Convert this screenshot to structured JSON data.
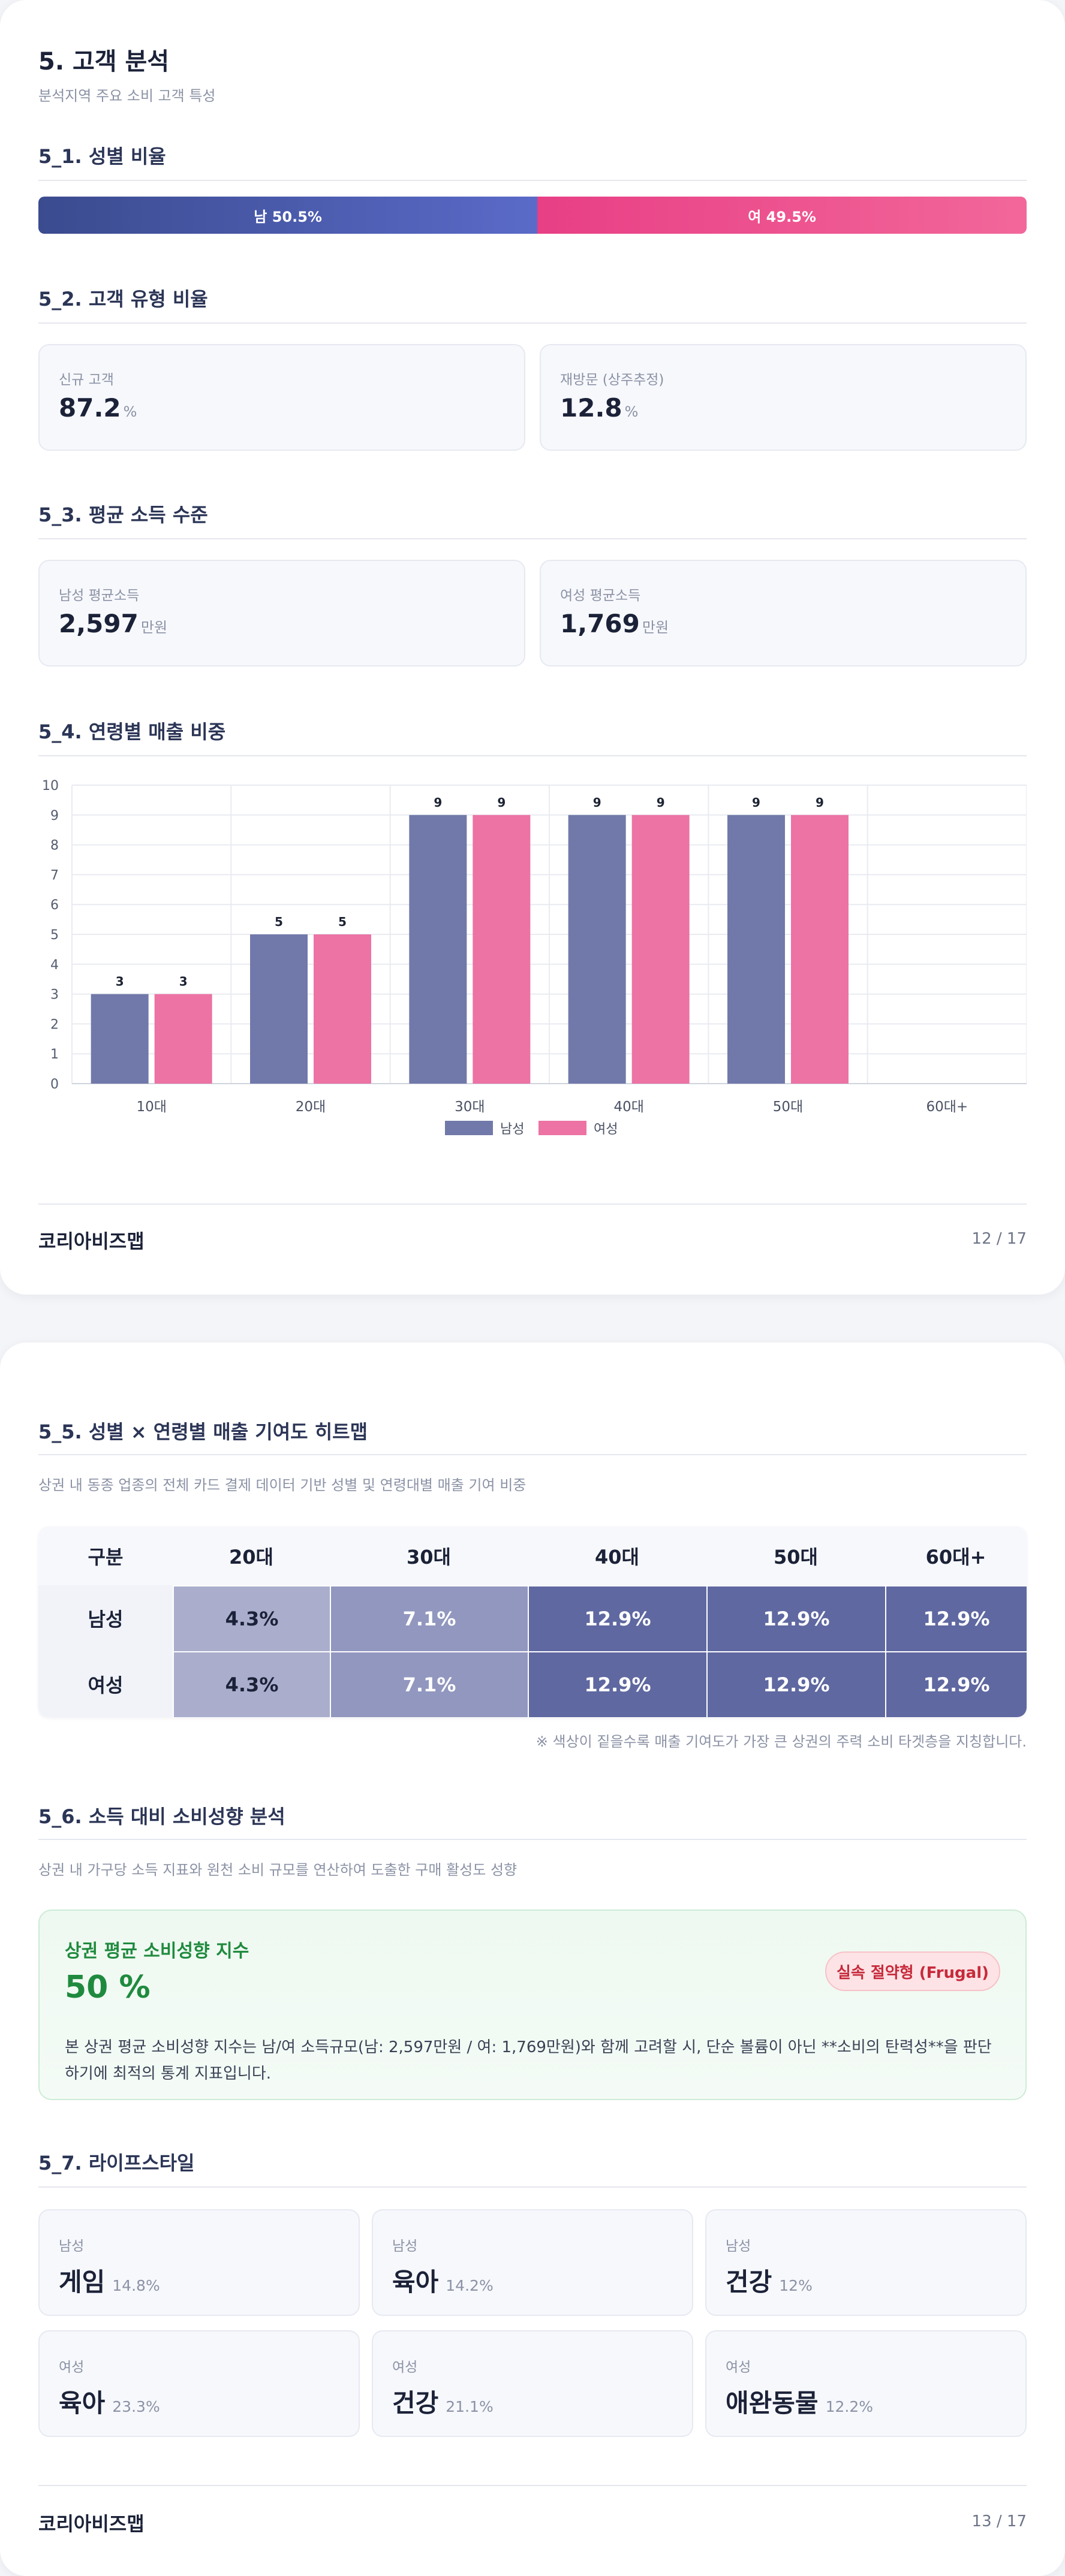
{
  "page1": {
    "title": "5. 고객 분석",
    "subtitle": "분석지역 주요 소비 고객 특성",
    "gender_ratio": {
      "heading": "5_1. 성별 비율",
      "male_label": "남 50.5%",
      "female_label": "여 49.5%",
      "male_pct": 50.5,
      "female_pct": 49.5,
      "male_color": "#4a5aab",
      "female_color": "#ec4f8c"
    },
    "customer_type": {
      "heading": "5_2. 고객 유형 비율",
      "cards": [
        {
          "label": "신규 고객",
          "value": "87.2",
          "unit": "%"
        },
        {
          "label": "재방문 (상주추정)",
          "value": "12.8",
          "unit": "%"
        }
      ]
    },
    "income": {
      "heading": "5_3. 평균 소득 수준",
      "cards": [
        {
          "label": "남성 평균소득",
          "value": "2,597",
          "unit": "만원"
        },
        {
          "label": "여성 평균소득",
          "value": "1,769",
          "unit": "만원"
        }
      ]
    },
    "age_sales": {
      "heading": "5_4. 연령별 매출 비중"
    },
    "footer": {
      "brand": "코리아비즈맵",
      "page": "12 / 17"
    }
  },
  "chart_data": {
    "type": "bar",
    "categories": [
      "10대",
      "20대",
      "30대",
      "40대",
      "50대",
      "60대+"
    ],
    "series": [
      {
        "name": "남성",
        "values": [
          3,
          5,
          9,
          9,
          9,
          0
        ],
        "color": "#7179aa"
      },
      {
        "name": "여성",
        "values": [
          3,
          5,
          9,
          9,
          9,
          0
        ],
        "color": "#ec73a4"
      }
    ],
    "data_labels": [
      [
        "3",
        "5",
        "9",
        "9",
        "9",
        ""
      ],
      [
        "3",
        "5",
        "9",
        "9",
        "9",
        ""
      ]
    ],
    "ylim": [
      0,
      10
    ],
    "yticks": [
      "0",
      "1",
      "2",
      "3",
      "4",
      "5",
      "6",
      "7",
      "8",
      "9",
      "10"
    ],
    "grid": true,
    "legend": "bottom-center"
  },
  "page2": {
    "heatmap": {
      "heading": "5_5. 성별 × 연령별 매출 기여도 히트맵",
      "desc": "상권 내 동종 업종의 전체 카드 결제 데이터 기반 성별 및 연령대별 매출 기여 비중",
      "corner": "구분",
      "columns": [
        "20대",
        "30대",
        "40대",
        "50대",
        "60대+"
      ],
      "rows": [
        {
          "label": "남성",
          "cells": [
            "4.3%",
            "7.1%",
            "12.9%",
            "12.9%",
            "12.9%"
          ]
        },
        {
          "label": "여성",
          "cells": [
            "4.3%",
            "7.1%",
            "12.9%",
            "12.9%",
            "12.9%"
          ]
        }
      ],
      "values": [
        [
          4.3,
          7.1,
          12.9,
          12.9,
          12.9
        ],
        [
          4.3,
          7.1,
          12.9,
          12.9,
          12.9
        ]
      ],
      "note": "※ 색상이 짙을수록 매출 기여도가 가장 큰 상권의 주력 소비 타겟층을 지칭합니다."
    },
    "consumption": {
      "heading": "5_6. 소득 대비 소비성향 분석",
      "desc": "상권 내 가구당 소득 지표와 원천 소비 규모를 연산하여 도출한 구매 활성도 성향",
      "index_title": "상권 평균 소비성향 지수",
      "index_value": "50 %",
      "badge": "실속 절약형 (Frugal)",
      "index_desc": "본 상권 평균 소비성향 지수는 남/여 소득규모(남: 2,597만원 / 여: 1,769만원)와 함께 고려할 시, 단순 볼륨이 아닌 **소비의 탄력성**을 판단하기에 최적의 통계 지표입니다."
    },
    "lifestyle": {
      "heading": "5_7. 라이프스타일",
      "items": [
        {
          "gender": "남성",
          "name": "게임",
          "pct": "14.8%"
        },
        {
          "gender": "남성",
          "name": "육아",
          "pct": "14.2%"
        },
        {
          "gender": "남성",
          "name": "건강",
          "pct": "12%"
        },
        {
          "gender": "여성",
          "name": "육아",
          "pct": "23.3%"
        },
        {
          "gender": "여성",
          "name": "건강",
          "pct": "21.1%"
        },
        {
          "gender": "여성",
          "name": "애완동물",
          "pct": "12.2%"
        }
      ]
    },
    "footer": {
      "brand": "코리아비즈맵",
      "page": "13 / 17"
    }
  }
}
